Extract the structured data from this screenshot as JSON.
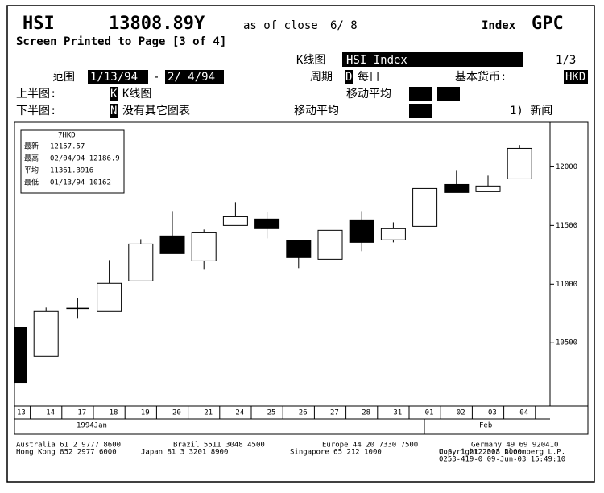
{
  "header": {
    "ticker": "HSI",
    "price": "13808.89Y",
    "as_of": "as of close",
    "date": "6/ 8",
    "sector": "Index",
    "function": "GPC",
    "printed": "Screen Printed to Page [3 of 4]",
    "chart_label": "K线图",
    "security": "HSI Index",
    "page": "1/3",
    "range_label": "范围",
    "range_start": "1/13/94",
    "range_dash": "-",
    "range_end": "2/ 4/94",
    "period_label": "周期",
    "period_code": "D",
    "period": "每日",
    "currency_label": "基本货币:",
    "currency": "HKD",
    "upper_label": "上半图:",
    "upper_code": "K",
    "upper_value": "K线图",
    "ma_label_1": "移动平均",
    "lower_label": "下半图:",
    "lower_code": "N",
    "lower_value": "没有其它图表",
    "ma_label_2": "移动平均",
    "news": "1) 新闻"
  },
  "chart_data": {
    "type": "candlestick",
    "categories": [
      "13",
      "14",
      "17",
      "18",
      "19",
      "20",
      "21",
      "24",
      "25",
      "26",
      "27",
      "28",
      "31",
      "01",
      "02",
      "03",
      "04"
    ],
    "open": [
      10630,
      10383,
      10794,
      10767,
      11027,
      11411,
      11198,
      11500,
      11555,
      11370,
      11212,
      11548,
      11377,
      11493,
      11849,
      11788,
      11897
    ],
    "high": [
      10630,
      10801,
      10883,
      11205,
      11383,
      11623,
      11466,
      11699,
      11616,
      11370,
      11459,
      11623,
      11527,
      11815,
      11966,
      11925,
      12186.9
    ],
    "low": [
      10162,
      10383,
      10705,
      10767,
      11027,
      11260,
      11123,
      11500,
      11390,
      11137,
      11212,
      11281,
      11356,
      11493,
      11781,
      11788,
      11897
    ],
    "close": [
      10162,
      10767,
      10794,
      11007,
      11342,
      11260,
      11438,
      11575,
      11473,
      11226,
      11459,
      11356,
      11473,
      11815,
      11781,
      11836,
      12157.57
    ],
    "up_color": "#ffffff",
    "down_color": "#000000",
    "ylim": [
      9960,
      12380
    ],
    "yticks": [
      10500,
      11000,
      11500,
      12000
    ],
    "month_labels": [
      "1994Jan",
      "Feb"
    ],
    "info": {
      "currency": "7HKD",
      "rows": [
        [
          "最新",
          "12157.57"
        ],
        [
          "最高",
          "02/04/94 12186.9"
        ],
        [
          "平均",
          "11361.3916"
        ],
        [
          "最低",
          "01/13/94 10162"
        ]
      ]
    }
  },
  "footer": {
    "line1": [
      "Australia 61 2 9777 8600",
      "Brazil 5511 3048 4500",
      "Europe 44 20 7330 7500",
      "Germany 49 69 920410"
    ],
    "line2": [
      "Hong Kong 852 2977 6000",
      "Japan 81 3 3201 8900",
      "Singapore 65 212 1000",
      "U.S. 1 212 318 2000"
    ],
    "copyright": "Copyright 2003 Bloomberg L.P.",
    "stamp": "0253-419-0 09-Jun-03 15:49:10"
  }
}
